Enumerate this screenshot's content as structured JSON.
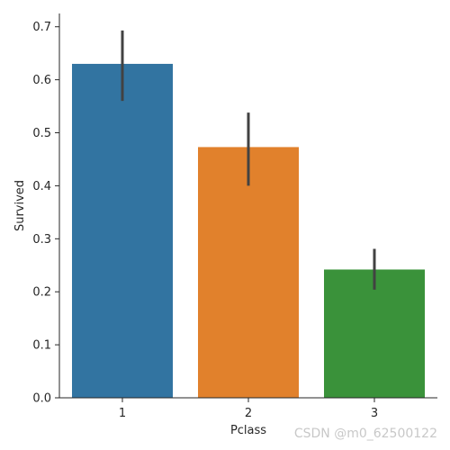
{
  "chart_data": {
    "type": "bar",
    "categories": [
      "1",
      "2",
      "3"
    ],
    "values": [
      0.63,
      0.473,
      0.242
    ],
    "error_bars": [
      {
        "low": 0.56,
        "high": 0.693
      },
      {
        "low": 0.4,
        "high": 0.538
      },
      {
        "low": 0.204,
        "high": 0.281
      }
    ],
    "colors": [
      "#3274a1",
      "#e1812c",
      "#3a923a"
    ],
    "errorbar_color": "#424242",
    "xlabel": "Pclass",
    "ylabel": "Survived",
    "ylim": [
      0,
      0.725
    ],
    "yticks": [
      "0.0",
      "0.1",
      "0.2",
      "0.3",
      "0.4",
      "0.5",
      "0.6",
      "0.7"
    ],
    "grid": false
  },
  "watermark": "CSDN @m0_62500122"
}
